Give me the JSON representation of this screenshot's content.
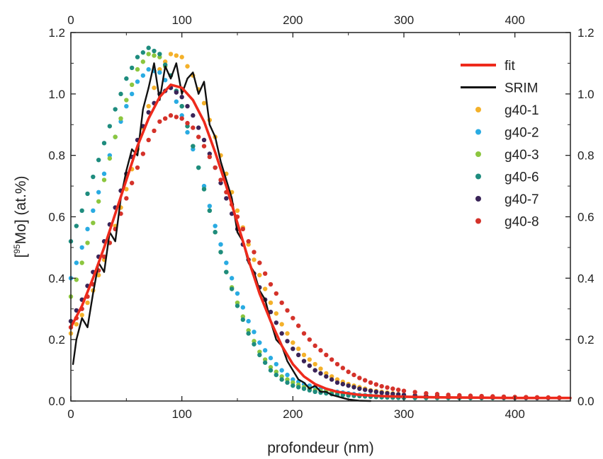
{
  "chart_data": {
    "type": "scatter",
    "xlabel": "profondeur (nm)",
    "ylabel_parts": {
      "open": "[",
      "sup": "95",
      "rest": "Mo] (at.%)"
    },
    "xlim": [
      0,
      450
    ],
    "ylim": [
      0,
      1.2
    ],
    "xticks": [
      0,
      100,
      200,
      300,
      400
    ],
    "yticks": [
      0.0,
      0.2,
      0.4,
      0.6,
      0.8,
      1.0,
      1.2
    ],
    "xtick_labels": [
      "0",
      "100",
      "200",
      "300",
      "400"
    ],
    "ytick_labels": [
      "0.0",
      "0.2",
      "0.4",
      "0.6",
      "0.8",
      "1.0",
      "1.2"
    ],
    "secondary_axes": {
      "top": true,
      "right": true
    },
    "grid": false,
    "legend_position": "top-right",
    "series": [
      {
        "name": "fit",
        "kind": "line",
        "color": "#ee2a1c",
        "x": [
          0,
          10,
          20,
          30,
          40,
          50,
          60,
          70,
          80,
          90,
          100,
          110,
          120,
          130,
          140,
          150,
          160,
          170,
          180,
          190,
          200,
          210,
          220,
          230,
          240,
          250,
          260,
          270,
          280,
          300,
          330,
          360,
          400,
          450
        ],
        "y": [
          0.24,
          0.31,
          0.4,
          0.5,
          0.61,
          0.72,
          0.83,
          0.92,
          0.99,
          1.03,
          1.02,
          0.98,
          0.91,
          0.81,
          0.7,
          0.58,
          0.46,
          0.35,
          0.26,
          0.18,
          0.12,
          0.08,
          0.055,
          0.04,
          0.03,
          0.025,
          0.02,
          0.018,
          0.016,
          0.014,
          0.012,
          0.011,
          0.01,
          0.01
        ]
      },
      {
        "name": "SRIM",
        "kind": "line",
        "color": "#111111",
        "x": [
          2,
          5,
          10,
          15,
          20,
          25,
          30,
          35,
          40,
          45,
          50,
          55,
          60,
          65,
          70,
          75,
          80,
          85,
          90,
          95,
          100,
          105,
          110,
          115,
          120,
          125,
          130,
          135,
          140,
          145,
          150,
          155,
          160,
          165,
          170,
          175,
          180,
          185,
          190,
          195,
          200,
          205,
          210,
          215,
          220,
          225,
          230,
          235,
          240,
          245,
          250,
          255,
          260,
          270
        ],
        "y": [
          0.12,
          0.2,
          0.27,
          0.24,
          0.35,
          0.45,
          0.42,
          0.55,
          0.52,
          0.66,
          0.75,
          0.82,
          0.8,
          0.95,
          1.02,
          1.1,
          0.98,
          1.09,
          1.05,
          1.1,
          1.0,
          1.05,
          1.07,
          1.0,
          1.04,
          0.9,
          0.86,
          0.78,
          0.72,
          0.66,
          0.55,
          0.52,
          0.45,
          0.42,
          0.36,
          0.33,
          0.26,
          0.2,
          0.18,
          0.13,
          0.1,
          0.07,
          0.06,
          0.04,
          0.05,
          0.03,
          0.03,
          0.02,
          0.015,
          0.01,
          0.005,
          0.003,
          0.001,
          0.0
        ]
      },
      {
        "name": "g40-1",
        "kind": "dots",
        "color": "#f4b12a",
        "x": [
          0,
          10,
          20,
          30,
          40,
          50,
          60,
          70,
          80,
          90,
          100,
          110,
          120,
          130,
          140,
          150,
          160,
          170,
          180,
          190,
          200,
          210,
          220,
          230,
          240,
          250,
          260,
          270,
          280,
          290,
          300,
          320,
          340,
          360,
          380,
          400,
          420,
          440
        ],
        "y": [
          0.22,
          0.28,
          0.36,
          0.46,
          0.57,
          0.69,
          0.82,
          0.96,
          1.08,
          1.13,
          1.12,
          1.06,
          0.97,
          0.86,
          0.74,
          0.62,
          0.51,
          0.41,
          0.32,
          0.25,
          0.19,
          0.15,
          0.12,
          0.09,
          0.07,
          0.055,
          0.045,
          0.035,
          0.03,
          0.025,
          0.02,
          0.017,
          0.015,
          0.014,
          0.012,
          0.011,
          0.01,
          0.01
        ]
      },
      {
        "name": "g40-2",
        "kind": "dots",
        "color": "#29abe2",
        "x": [
          0,
          10,
          20,
          30,
          40,
          50,
          60,
          70,
          80,
          90,
          100,
          110,
          120,
          130,
          140,
          150,
          160,
          170,
          180,
          190,
          200,
          210,
          220,
          230,
          240,
          250,
          260,
          270,
          280,
          290,
          300,
          320,
          340,
          360,
          380,
          400,
          420,
          440
        ],
        "y": [
          0.4,
          0.5,
          0.62,
          0.74,
          0.86,
          0.96,
          1.04,
          1.08,
          1.07,
          1.02,
          0.93,
          0.82,
          0.7,
          0.57,
          0.45,
          0.35,
          0.26,
          0.19,
          0.14,
          0.1,
          0.07,
          0.055,
          0.045,
          0.035,
          0.03,
          0.025,
          0.02,
          0.018,
          0.016,
          0.014,
          0.012,
          0.011,
          0.01,
          0.01,
          0.01,
          0.01,
          0.01,
          0.01
        ]
      },
      {
        "name": "g40-3",
        "kind": "dots",
        "color": "#8cc63f",
        "x": [
          0,
          10,
          20,
          30,
          40,
          50,
          60,
          70,
          80,
          90,
          100,
          110,
          120,
          130,
          140,
          150,
          160,
          170,
          180,
          190,
          200,
          210,
          220,
          230,
          240,
          250,
          260,
          270,
          280,
          290,
          300,
          320,
          340,
          360,
          380,
          400,
          420,
          440
        ],
        "y": [
          0.34,
          0.45,
          0.58,
          0.72,
          0.86,
          0.98,
          1.08,
          1.13,
          1.12,
          1.06,
          0.96,
          0.83,
          0.69,
          0.55,
          0.42,
          0.32,
          0.23,
          0.16,
          0.11,
          0.08,
          0.06,
          0.045,
          0.035,
          0.03,
          0.025,
          0.02,
          0.018,
          0.016,
          0.014,
          0.012,
          0.011,
          0.01,
          0.01,
          0.01,
          0.01,
          0.01,
          0.01,
          0.01
        ]
      },
      {
        "name": "g40-6",
        "kind": "dots",
        "color": "#1e8c7e",
        "x": [
          0,
          10,
          20,
          30,
          40,
          50,
          60,
          70,
          80,
          90,
          100,
          110,
          120,
          130,
          140,
          150,
          160,
          170,
          180,
          190,
          200,
          210,
          220,
          230,
          240,
          250,
          260,
          270,
          280,
          290,
          300,
          320,
          340,
          360,
          380,
          400,
          420,
          440
        ],
        "y": [
          0.52,
          0.62,
          0.73,
          0.84,
          0.95,
          1.05,
          1.12,
          1.15,
          1.13,
          1.06,
          0.96,
          0.83,
          0.69,
          0.55,
          0.42,
          0.31,
          0.22,
          0.15,
          0.1,
          0.07,
          0.05,
          0.04,
          0.03,
          0.025,
          0.02,
          0.018,
          0.016,
          0.014,
          0.012,
          0.011,
          0.01,
          0.01,
          0.01,
          0.01,
          0.01,
          0.01,
          0.01,
          0.01
        ]
      },
      {
        "name": "g40-7",
        "kind": "dots",
        "color": "#3a2458",
        "x": [
          0,
          10,
          20,
          30,
          40,
          50,
          60,
          70,
          80,
          90,
          100,
          110,
          120,
          130,
          140,
          150,
          160,
          170,
          180,
          190,
          200,
          210,
          220,
          230,
          240,
          250,
          260,
          270,
          280,
          290,
          300,
          320,
          340,
          360,
          380,
          400,
          420,
          440
        ],
        "y": [
          0.26,
          0.33,
          0.42,
          0.52,
          0.63,
          0.74,
          0.85,
          0.94,
          1.0,
          1.02,
          0.99,
          0.93,
          0.85,
          0.76,
          0.66,
          0.56,
          0.46,
          0.37,
          0.29,
          0.22,
          0.17,
          0.13,
          0.1,
          0.08,
          0.06,
          0.05,
          0.04,
          0.033,
          0.027,
          0.023,
          0.02,
          0.016,
          0.014,
          0.013,
          0.012,
          0.011,
          0.01,
          0.01
        ]
      },
      {
        "name": "g40-8",
        "kind": "dots",
        "color": "#d4322a",
        "x": [
          0,
          10,
          20,
          30,
          40,
          50,
          60,
          70,
          80,
          90,
          100,
          110,
          120,
          130,
          140,
          150,
          160,
          170,
          180,
          190,
          200,
          210,
          220,
          230,
          240,
          250,
          260,
          270,
          280,
          290,
          300,
          320,
          340,
          360,
          380,
          400,
          420,
          440
        ],
        "y": [
          0.24,
          0.3,
          0.38,
          0.47,
          0.56,
          0.66,
          0.76,
          0.85,
          0.91,
          0.93,
          0.92,
          0.89,
          0.83,
          0.76,
          0.68,
          0.6,
          0.52,
          0.45,
          0.38,
          0.32,
          0.27,
          0.22,
          0.18,
          0.15,
          0.12,
          0.095,
          0.075,
          0.06,
          0.048,
          0.04,
          0.033,
          0.025,
          0.02,
          0.017,
          0.015,
          0.013,
          0.012,
          0.011
        ]
      }
    ]
  }
}
